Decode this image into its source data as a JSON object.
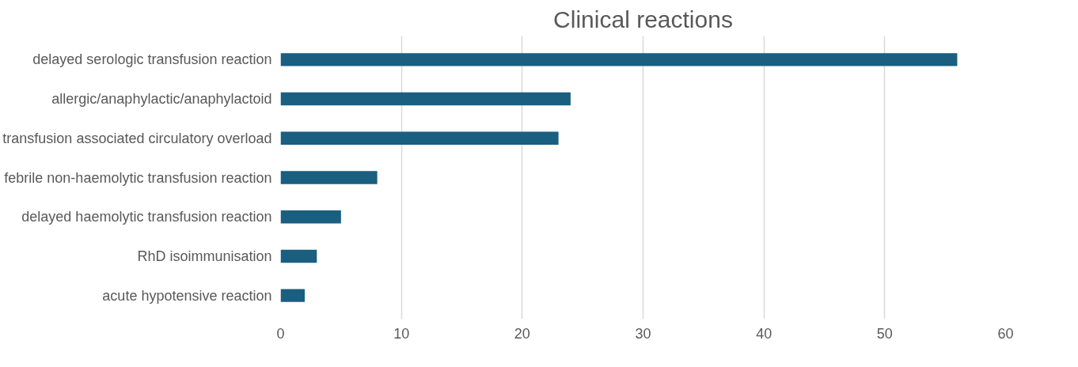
{
  "chart_data": {
    "type": "bar",
    "orientation": "horizontal",
    "title": "Clinical reactions",
    "categories": [
      "delayed serologic transfusion reaction",
      "allergic/anaphylactic/anaphylactoid",
      "transfusion associated circulatory overload",
      "febrile non-haemolytic transfusion reaction",
      "delayed haemolytic transfusion reaction",
      "RhD isoimmunisation",
      "acute hypotensive reaction"
    ],
    "values": [
      56,
      24,
      23,
      8,
      5,
      3,
      2
    ],
    "color": "#1a5e80",
    "xlim": [
      0,
      60
    ],
    "xticks": [
      0,
      10,
      20,
      30,
      40,
      50,
      60
    ],
    "grid": "x"
  }
}
